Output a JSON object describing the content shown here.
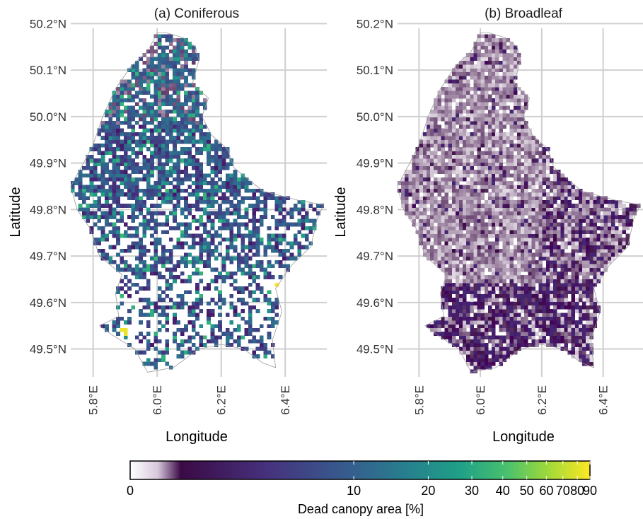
{
  "figure": {
    "colorbar": {
      "title": "Dead canopy area [%]",
      "ticks": [
        0,
        10,
        20,
        30,
        40,
        50,
        60,
        70,
        80,
        90
      ],
      "tick_labels": [
        "0",
        "10",
        "20",
        "30",
        "40",
        "50",
        "60",
        "70",
        "80",
        "90"
      ],
      "colormap": "white-to-purple then viridis (dark purple → blue → teal → green → yellow)",
      "colors": [
        "#ffffff",
        "#3b0a45",
        "#46327e",
        "#365c8d",
        "#277f8e",
        "#1fa187",
        "#4ac16d",
        "#a0da39",
        "#fde725"
      ]
    }
  },
  "chart_data": [
    {
      "type": "heatmap",
      "title": "(a) Coniferous",
      "xlabel": "Longitude",
      "ylabel": "Latitude",
      "x_ticks": [
        "5.8°E",
        "6.0°E",
        "6.2°E",
        "6.4°E"
      ],
      "x_tick_values": [
        5.8,
        6.0,
        6.2,
        6.4
      ],
      "y_ticks": [
        "49.5°N",
        "49.6°N",
        "49.7°N",
        "49.8°N",
        "49.9°N",
        "50.0°N",
        "50.1°N",
        "50.2°N"
      ],
      "y_tick_values": [
        49.5,
        49.6,
        49.7,
        49.8,
        49.9,
        50.0,
        50.1,
        50.2
      ],
      "xlim": [
        5.73,
        6.53
      ],
      "ylim": [
        49.44,
        50.19
      ],
      "grid": true,
      "region": "Luxembourg (gridded cells)",
      "typical_value_range_percent": [
        2,
        15
      ],
      "hotspots_percent": [
        {
          "lon": 6.38,
          "lat": 49.645,
          "value": 90
        },
        {
          "lon": 5.9,
          "lat": 49.54,
          "value": 80
        },
        {
          "lon": 6.35,
          "lat": 49.47,
          "value": 40
        },
        {
          "lon": 6.05,
          "lat": 49.62,
          "value": 35
        }
      ]
    },
    {
      "type": "heatmap",
      "title": "(b) Broadleaf",
      "xlabel": "Longitude",
      "ylabel": "Latitude",
      "x_ticks": [
        "5.8°E",
        "6.0°E",
        "6.2°E",
        "6.4°E"
      ],
      "x_tick_values": [
        5.8,
        6.0,
        6.2,
        6.4
      ],
      "y_ticks": [
        "49.5°N",
        "49.6°N",
        "49.7°N",
        "49.8°N",
        "49.9°N",
        "50.0°N",
        "50.1°N",
        "50.2°N"
      ],
      "y_tick_values": [
        49.5,
        49.6,
        49.7,
        49.8,
        49.9,
        50.0,
        50.1,
        50.2
      ],
      "xlim": [
        5.73,
        6.53
      ],
      "ylim": [
        49.44,
        50.19
      ],
      "grid": true,
      "region": "Luxembourg (gridded cells)",
      "typical_value_range_percent": [
        0,
        3
      ],
      "max_value_percent": 3
    }
  ]
}
